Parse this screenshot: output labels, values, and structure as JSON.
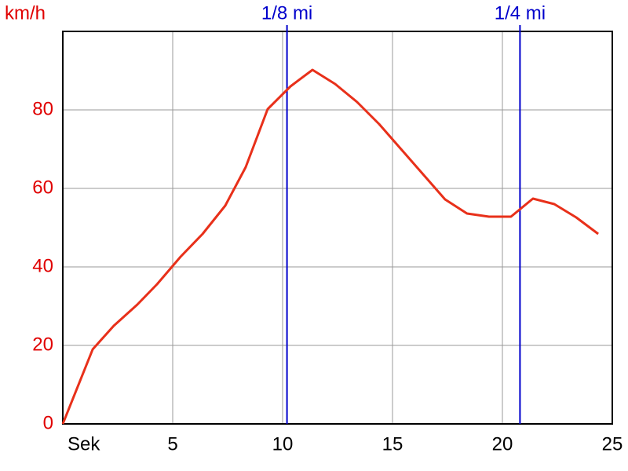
{
  "chart_data": {
    "type": "line",
    "y_label": "km/h",
    "x": [
      0,
      1.36,
      2.32,
      3.39,
      4.29,
      5.36,
      6.36,
      7.39,
      8.32,
      9.32,
      10.36,
      11.36,
      12.39,
      13.39,
      14.39,
      15.39,
      16.39,
      17.39,
      18.39,
      19.39,
      20.39,
      21.39,
      22.36,
      23.36,
      24.36
    ],
    "series": [
      {
        "color": "#e8301a",
        "values": [
          0,
          19,
          25,
          30.4,
          35.6,
          42.6,
          48.4,
          55.6,
          65.4,
          80.2,
          86,
          90.2,
          86.6,
          82,
          76.4,
          70,
          63.6,
          57.2,
          53.6,
          52.8,
          52.8,
          57.4,
          56,
          52.6,
          48.4
        ]
      }
    ],
    "xlim": [
      0,
      25
    ],
    "xticks": [
      {
        "value": 0,
        "label": "Sek"
      },
      5,
      10,
      15,
      20,
      25
    ],
    "ylim": [
      0,
      100
    ],
    "yticks": [
      0,
      20,
      40,
      60,
      80
    ],
    "grid": true,
    "axis_label_color": "#e00000",
    "markers": [
      {
        "label": "1/8 mi",
        "x": 10.2
      },
      {
        "label": "1/4 mi",
        "x": 20.8
      }
    ],
    "marker_color": "#0000cc"
  }
}
